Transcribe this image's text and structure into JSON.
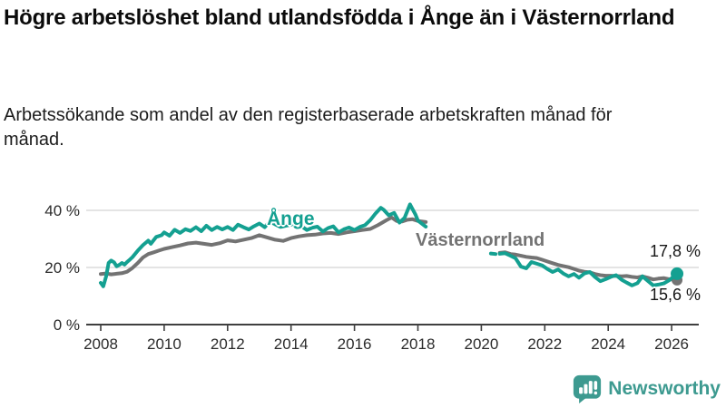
{
  "header": {
    "title": "Högre arbetslöshet bland utlandsfödda i Ånge än i Västernorrland",
    "subtitle": "Arbetssökande som andel av den registerbaserade arbetskraften månad för månad."
  },
  "footer": {
    "brand": "Newsworthy"
  },
  "colors": {
    "teal": "#14a091",
    "gray": "#737373",
    "grid": "#dcdcdc",
    "axis": "#3f3f3f",
    "tick_text": "#2b2b2b",
    "value_text": "#161616",
    "brand_teal": "#3d9a90"
  },
  "chart_data": {
    "type": "line",
    "xlabel": "",
    "ylabel": "",
    "xlim": [
      2007.5,
      2026.9
    ],
    "ylim": [
      0,
      45
    ],
    "grid": "horizontal",
    "x_ticks": [
      2008,
      2010,
      2012,
      2014,
      2016,
      2018,
      2020,
      2022,
      2024,
      2026
    ],
    "y_ticks": [
      {
        "value": 0,
        "label": "0 %"
      },
      {
        "value": 20,
        "label": "20 %"
      },
      {
        "value": 40,
        "label": "40 %"
      }
    ],
    "data_gap": "no data between early 2018 and mid 2020",
    "series": [
      {
        "id": "ange",
        "name": "Ånge",
        "color": "#14a091",
        "final_value": 17.8,
        "final_label": "17,8 %",
        "end_dot_radius": 7,
        "segments": [
          [
            [
              2008.0,
              14.6
            ],
            [
              2008.08,
              13.4
            ],
            [
              2008.17,
              16.8
            ],
            [
              2008.25,
              21.6
            ],
            [
              2008.33,
              22.4
            ],
            [
              2008.42,
              21.8
            ],
            [
              2008.5,
              20.4
            ],
            [
              2008.58,
              20.9
            ],
            [
              2008.67,
              21.6
            ],
            [
              2008.75,
              21.0
            ],
            [
              2008.83,
              21.9
            ],
            [
              2008.92,
              22.8
            ],
            [
              2009.0,
              23.6
            ],
            [
              2009.17,
              25.9
            ],
            [
              2009.33,
              27.8
            ],
            [
              2009.5,
              29.4
            ],
            [
              2009.58,
              28.3
            ],
            [
              2009.75,
              30.7
            ],
            [
              2009.92,
              31.3
            ],
            [
              2010.0,
              32.3
            ],
            [
              2010.17,
              31.1
            ],
            [
              2010.33,
              33.2
            ],
            [
              2010.5,
              32.1
            ],
            [
              2010.67,
              33.4
            ],
            [
              2010.83,
              32.8
            ],
            [
              2011.0,
              34.1
            ],
            [
              2011.17,
              32.7
            ],
            [
              2011.33,
              34.6
            ],
            [
              2011.5,
              33.1
            ],
            [
              2011.67,
              34.2
            ],
            [
              2011.83,
              33.3
            ],
            [
              2012.0,
              34.2
            ],
            [
              2012.17,
              33.1
            ],
            [
              2012.33,
              35.0
            ],
            [
              2012.5,
              34.1
            ],
            [
              2012.67,
              33.3
            ],
            [
              2012.83,
              34.4
            ],
            [
              2013.0,
              35.4
            ],
            [
              2013.17,
              34.1
            ],
            [
              2013.33,
              36.1
            ],
            [
              2013.5,
              35.1
            ],
            [
              2013.67,
              34.2
            ],
            [
              2013.83,
              34.6
            ],
            [
              2014.0,
              35.0
            ],
            [
              2014.17,
              35.6
            ],
            [
              2014.33,
              34.4
            ],
            [
              2014.5,
              33.1
            ],
            [
              2014.67,
              33.9
            ],
            [
              2014.83,
              34.3
            ],
            [
              2015.0,
              32.6
            ],
            [
              2015.17,
              33.8
            ],
            [
              2015.33,
              34.4
            ],
            [
              2015.5,
              32.3
            ],
            [
              2015.67,
              33.4
            ],
            [
              2015.83,
              34.0
            ],
            [
              2016.0,
              33.1
            ],
            [
              2016.17,
              34.2
            ],
            [
              2016.33,
              34.8
            ],
            [
              2016.5,
              36.6
            ],
            [
              2016.67,
              39.0
            ],
            [
              2016.83,
              40.9
            ],
            [
              2016.92,
              40.2
            ],
            [
              2017.08,
              38.3
            ],
            [
              2017.25,
              39.1
            ],
            [
              2017.42,
              35.7
            ],
            [
              2017.58,
              37.4
            ],
            [
              2017.75,
              42.1
            ],
            [
              2017.92,
              38.6
            ],
            [
              2018.0,
              36.4
            ],
            [
              2018.25,
              34.3
            ]
          ],
          [
            [
              2020.3,
              24.9
            ],
            [
              2020.45,
              24.7
            ]
          ],
          [
            [
              2020.58,
              24.8
            ],
            [
              2020.75,
              25.0
            ],
            [
              2020.92,
              24.1
            ],
            [
              2021.08,
              23.2
            ],
            [
              2021.25,
              20.3
            ],
            [
              2021.42,
              19.7
            ],
            [
              2021.58,
              21.9
            ],
            [
              2021.75,
              21.3
            ],
            [
              2021.92,
              20.7
            ],
            [
              2022.08,
              19.5
            ],
            [
              2022.25,
              18.4
            ],
            [
              2022.42,
              19.3
            ],
            [
              2022.58,
              17.9
            ],
            [
              2022.75,
              16.9
            ],
            [
              2022.92,
              17.7
            ],
            [
              2023.08,
              16.4
            ],
            [
              2023.25,
              17.9
            ],
            [
              2023.42,
              18.4
            ],
            [
              2023.58,
              16.7
            ],
            [
              2023.75,
              15.2
            ],
            [
              2023.92,
              15.9
            ],
            [
              2024.08,
              16.7
            ],
            [
              2024.25,
              17.3
            ],
            [
              2024.42,
              15.7
            ],
            [
              2024.58,
              14.7
            ],
            [
              2024.75,
              13.7
            ],
            [
              2024.92,
              14.5
            ],
            [
              2025.08,
              16.9
            ],
            [
              2025.25,
              15.3
            ],
            [
              2025.42,
              13.7
            ],
            [
              2025.58,
              14.0
            ],
            [
              2025.75,
              14.4
            ],
            [
              2025.92,
              15.5
            ],
            [
              2026.17,
              17.8
            ]
          ]
        ]
      },
      {
        "id": "vasternorrland",
        "name": "Västernorrland",
        "color": "#737373",
        "final_value": 15.6,
        "final_label": "15,6 %",
        "end_dot_radius": 6,
        "segments": [
          [
            [
              2008.0,
              17.7
            ],
            [
              2008.17,
              17.9
            ],
            [
              2008.33,
              17.6
            ],
            [
              2008.5,
              17.8
            ],
            [
              2008.67,
              18.0
            ],
            [
              2008.83,
              18.5
            ],
            [
              2009.0,
              19.8
            ],
            [
              2009.17,
              21.6
            ],
            [
              2009.33,
              23.5
            ],
            [
              2009.5,
              24.7
            ],
            [
              2009.67,
              25.3
            ],
            [
              2009.83,
              25.9
            ],
            [
              2010.0,
              26.5
            ],
            [
              2010.25,
              27.1
            ],
            [
              2010.5,
              27.7
            ],
            [
              2010.75,
              28.4
            ],
            [
              2011.0,
              28.7
            ],
            [
              2011.25,
              28.3
            ],
            [
              2011.5,
              27.9
            ],
            [
              2011.75,
              28.5
            ],
            [
              2012.0,
              29.5
            ],
            [
              2012.25,
              29.1
            ],
            [
              2012.5,
              29.7
            ],
            [
              2012.75,
              30.3
            ],
            [
              2013.0,
              31.3
            ],
            [
              2013.25,
              30.5
            ],
            [
              2013.5,
              29.7
            ],
            [
              2013.75,
              29.3
            ],
            [
              2014.0,
              30.3
            ],
            [
              2014.25,
              30.9
            ],
            [
              2014.5,
              31.3
            ],
            [
              2014.75,
              31.5
            ],
            [
              2015.0,
              31.9
            ],
            [
              2015.25,
              32.1
            ],
            [
              2015.5,
              31.7
            ],
            [
              2015.75,
              32.3
            ],
            [
              2016.0,
              32.7
            ],
            [
              2016.25,
              33.1
            ],
            [
              2016.5,
              33.5
            ],
            [
              2016.75,
              34.9
            ],
            [
              2017.0,
              36.5
            ],
            [
              2017.17,
              37.5
            ],
            [
              2017.33,
              36.3
            ],
            [
              2017.5,
              36.1
            ],
            [
              2017.67,
              36.7
            ],
            [
              2017.83,
              36.9
            ],
            [
              2018.0,
              36.3
            ],
            [
              2018.25,
              35.9
            ]
          ],
          [
            [
              2020.58,
              25.1
            ],
            [
              2020.75,
              25.3
            ],
            [
              2020.92,
              24.7
            ],
            [
              2021.08,
              24.5
            ],
            [
              2021.25,
              24.1
            ],
            [
              2021.42,
              23.7
            ],
            [
              2021.58,
              23.5
            ],
            [
              2021.75,
              23.3
            ],
            [
              2021.92,
              22.7
            ],
            [
              2022.08,
              22.1
            ],
            [
              2022.25,
              21.5
            ],
            [
              2022.42,
              20.9
            ],
            [
              2022.58,
              20.5
            ],
            [
              2022.75,
              20.1
            ],
            [
              2022.92,
              19.5
            ],
            [
              2023.08,
              18.9
            ],
            [
              2023.25,
              18.5
            ],
            [
              2023.42,
              18.3
            ],
            [
              2023.58,
              17.7
            ],
            [
              2023.75,
              17.3
            ],
            [
              2023.92,
              17.1
            ],
            [
              2024.08,
              17.1
            ],
            [
              2024.25,
              17.0
            ],
            [
              2024.42,
              16.9
            ],
            [
              2024.58,
              17.0
            ],
            [
              2024.75,
              16.7
            ],
            [
              2024.92,
              16.5
            ],
            [
              2025.08,
              16.9
            ],
            [
              2025.25,
              16.4
            ],
            [
              2025.42,
              15.8
            ],
            [
              2025.58,
              16.1
            ],
            [
              2025.75,
              16.3
            ],
            [
              2025.92,
              15.9
            ],
            [
              2026.17,
              15.6
            ]
          ]
        ]
      }
    ]
  }
}
